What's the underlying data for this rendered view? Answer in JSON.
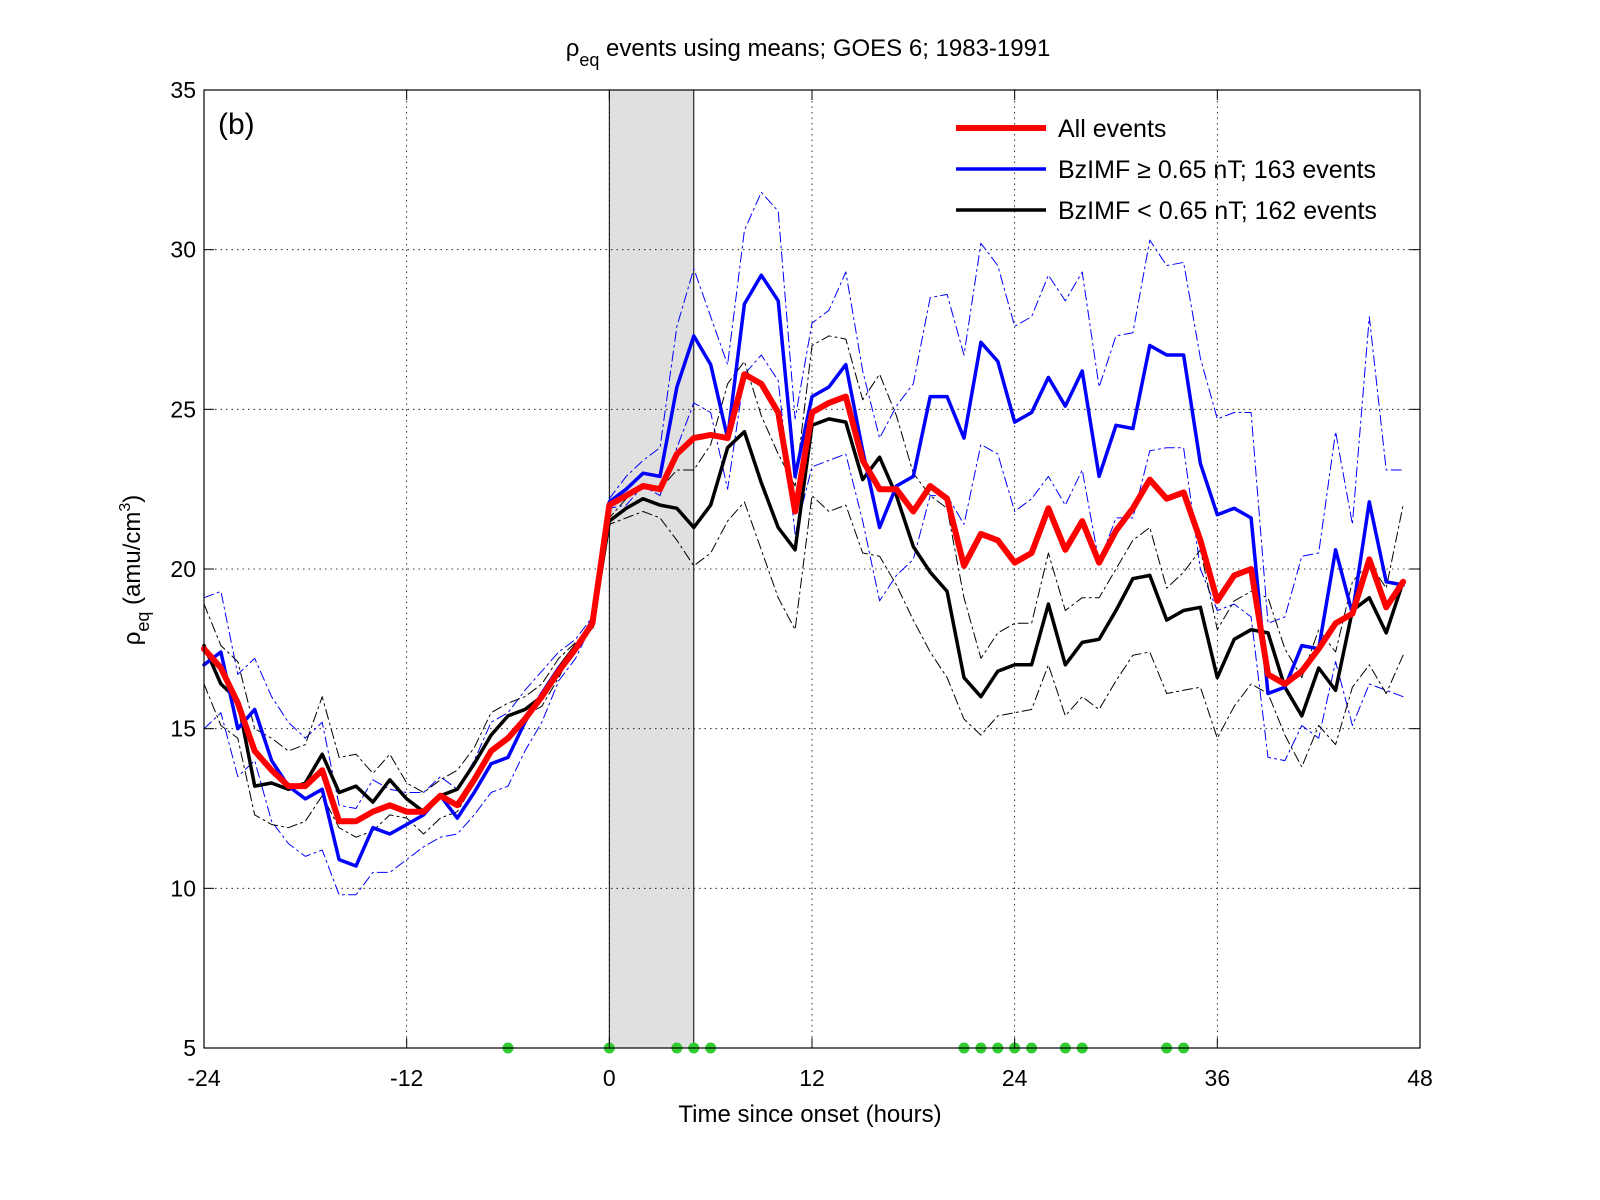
{
  "title": {
    "rho": "ρ",
    "sub": "eq",
    "rest": " events using means; GOES 6; 1983-1991"
  },
  "panel_label": "(b)",
  "chart_data": {
    "type": "line",
    "xlabel": "Time since onset (hours)",
    "ylabel": {
      "rho": "ρ",
      "sub": "eq",
      "units_pre": " (amu/cm",
      "units_sup": "3",
      "units_post": ")"
    },
    "xlim": [
      -24,
      48
    ],
    "ylim": [
      5,
      35
    ],
    "xticks": [
      -24,
      -12,
      0,
      12,
      24,
      36,
      48
    ],
    "yticks": [
      5,
      10,
      15,
      20,
      25,
      30,
      35
    ],
    "grid": true,
    "shaded_region": [
      0,
      5
    ],
    "legend_position": "top-right",
    "legend": [
      {
        "label": "All events",
        "color": "#ff0000",
        "width": 6
      },
      {
        "label": "BzIMF  ≥ 0.65 nT; 163 events",
        "color": "#0000ff",
        "width": 3.5
      },
      {
        "label": "BzIMF < 0.65 nT; 162 events",
        "color": "#000000",
        "width": 3.5
      }
    ],
    "x": [
      -24,
      -23,
      -22,
      -21,
      -20,
      -19,
      -18,
      -17,
      -16,
      -15,
      -14,
      -13,
      -12,
      -11,
      -10,
      -9,
      -8,
      -7,
      -6,
      -5,
      -4,
      -3,
      -2,
      -1,
      0,
      1,
      2,
      3,
      4,
      5,
      6,
      7,
      8,
      9,
      10,
      11,
      12,
      13,
      14,
      15,
      16,
      17,
      18,
      19,
      20,
      21,
      22,
      23,
      24,
      25,
      26,
      27,
      28,
      29,
      30,
      31,
      32,
      33,
      34,
      35,
      36,
      37,
      38,
      39,
      40,
      41,
      42,
      43,
      44,
      45,
      46,
      47
    ],
    "series": [
      {
        "name": "All events",
        "color": "#ff0000",
        "width": 6,
        "values": [
          17.5,
          16.9,
          15.8,
          14.3,
          13.7,
          13.2,
          13.2,
          13.7,
          12.1,
          12.1,
          12.4,
          12.6,
          12.4,
          12.4,
          12.9,
          12.6,
          13.4,
          14.3,
          14.7,
          15.3,
          16.0,
          16.8,
          17.5,
          18.3,
          22.0,
          22.3,
          22.6,
          22.5,
          23.6,
          24.1,
          24.2,
          24.1,
          26.1,
          25.8,
          24.9,
          21.8,
          24.9,
          25.2,
          25.4,
          23.4,
          22.5,
          22.5,
          21.8,
          22.6,
          22.2,
          20.1,
          21.1,
          20.9,
          20.2,
          20.5,
          21.9,
          20.6,
          21.5,
          20.2,
          21.2,
          21.9,
          22.8,
          22.2,
          22.4,
          20.9,
          19.0,
          19.8,
          20.0,
          16.7,
          16.4,
          16.8,
          17.5,
          18.3,
          18.6,
          20.3,
          18.8,
          19.6
        ]
      },
      {
        "name": "BzIMF  ≥ 0.65 nT; 163 events",
        "color": "#0000ff",
        "width": 3.5,
        "values": [
          17.0,
          17.4,
          15.0,
          15.6,
          14.0,
          13.2,
          12.8,
          13.1,
          10.9,
          10.7,
          11.9,
          11.7,
          12.0,
          12.3,
          12.9,
          12.2,
          13.0,
          13.9,
          14.1,
          15.2,
          16.1,
          16.9,
          17.5,
          18.4,
          22.1,
          22.5,
          23.0,
          22.9,
          25.7,
          27.3,
          26.4,
          24.1,
          28.3,
          29.2,
          28.4,
          22.9,
          25.4,
          25.7,
          26.4,
          23.7,
          21.3,
          22.6,
          22.9,
          25.4,
          25.4,
          24.1,
          27.1,
          26.5,
          24.6,
          24.9,
          26.0,
          25.1,
          26.2,
          22.9,
          24.5,
          24.4,
          27.0,
          26.7,
          26.7,
          23.3,
          21.7,
          21.9,
          21.6,
          16.1,
          16.3,
          17.6,
          17.5,
          20.6,
          18.6,
          22.1,
          19.6,
          19.5
        ]
      },
      {
        "name": "BzIMF < 0.65 nT; 162 events",
        "color": "#000000",
        "width": 3.5,
        "values": [
          17.6,
          16.4,
          15.9,
          13.2,
          13.3,
          13.1,
          13.3,
          14.2,
          13.0,
          13.2,
          12.7,
          13.4,
          12.8,
          12.4,
          12.9,
          13.1,
          13.9,
          14.8,
          15.4,
          15.6,
          16.0,
          16.9,
          17.6,
          18.2,
          21.5,
          21.9,
          22.2,
          22.0,
          21.9,
          21.3,
          22.0,
          23.8,
          24.3,
          22.7,
          21.3,
          20.6,
          24.5,
          24.7,
          24.6,
          22.8,
          23.5,
          22.3,
          20.7,
          19.9,
          19.3,
          16.6,
          16.0,
          16.8,
          17.0,
          17.0,
          18.9,
          17.0,
          17.7,
          17.8,
          18.7,
          19.7,
          19.8,
          18.4,
          18.7,
          18.8,
          16.6,
          17.8,
          18.1,
          18.0,
          16.3,
          15.4,
          16.9,
          16.2,
          18.7,
          19.1,
          18.0,
          19.6
        ]
      },
      {
        "name": "",
        "color": "#0000ff",
        "width": 1,
        "dashed": true,
        "values": [
          19.1,
          19.3,
          16.7,
          17.2,
          16.0,
          15.2,
          14.7,
          15.2,
          12.6,
          12.5,
          13.4,
          13.1,
          13.0,
          13.0,
          13.5,
          13.1,
          14.0,
          15.2,
          15.5,
          16.2,
          16.8,
          17.4,
          17.8,
          18.5,
          22.2,
          22.9,
          23.4,
          23.8,
          27.6,
          29.4,
          27.9,
          26.4,
          30.6,
          31.8,
          31.2,
          24.7,
          27.7,
          28.1,
          29.3,
          26.2,
          24.1,
          25.1,
          25.8,
          28.5,
          28.6,
          26.7,
          30.2,
          29.5,
          27.6,
          27.9,
          29.2,
          28.4,
          29.3,
          25.7,
          27.3,
          27.4,
          30.3,
          29.5,
          29.6,
          26.6,
          24.7,
          24.9,
          24.9,
          18.3,
          18.5,
          20.4,
          20.5,
          24.3,
          21.4,
          27.9,
          23.1,
          23.1
        ]
      },
      {
        "name": "",
        "color": "#0000ff",
        "width": 1,
        "dashed": true,
        "values": [
          15.0,
          15.5,
          13.5,
          14.0,
          12.1,
          11.4,
          11.0,
          11.2,
          9.8,
          9.8,
          10.5,
          10.5,
          10.9,
          11.3,
          11.6,
          11.7,
          12.3,
          13.0,
          13.2,
          14.3,
          15.2,
          16.5,
          17.2,
          18.3,
          21.9,
          22.0,
          22.6,
          22.3,
          23.8,
          25.2,
          24.9,
          22.5,
          26.1,
          26.7,
          25.9,
          21.1,
          23.2,
          23.4,
          23.6,
          21.5,
          19.0,
          19.8,
          20.3,
          22.3,
          22.3,
          21.4,
          23.9,
          23.6,
          21.8,
          22.2,
          22.9,
          22.0,
          23.1,
          20.2,
          21.6,
          21.6,
          23.7,
          23.8,
          23.8,
          20.0,
          18.7,
          18.9,
          18.5,
          14.1,
          14.0,
          15.1,
          14.7,
          17.1,
          15.1,
          16.4,
          16.2,
          16.0
        ]
      },
      {
        "name": "",
        "color": "#000000",
        "width": 1,
        "dashed": true,
        "values": [
          18.9,
          17.6,
          17.1,
          15.0,
          14.7,
          14.3,
          14.5,
          16.0,
          14.1,
          14.2,
          13.6,
          14.2,
          13.3,
          13.0,
          13.4,
          13.7,
          14.4,
          15.5,
          15.8,
          16.0,
          16.4,
          17.2,
          17.7,
          18.2,
          21.6,
          22.2,
          22.6,
          22.5,
          23.1,
          23.1,
          23.9,
          25.8,
          26.5,
          24.8,
          23.6,
          22.6,
          27.0,
          27.3,
          27.2,
          25.3,
          26.1,
          24.8,
          23.0,
          22.3,
          21.9,
          19.1,
          17.2,
          18.0,
          18.3,
          18.3,
          20.5,
          18.7,
          19.1,
          19.1,
          20.0,
          20.9,
          21.3,
          19.4,
          19.9,
          20.6,
          18.1,
          19.0,
          19.3,
          19.1,
          17.5,
          16.6,
          18.1,
          17.4,
          19.6,
          20.2,
          19.4,
          22.0
        ]
      },
      {
        "name": "",
        "color": "#000000",
        "width": 1,
        "dashed": true,
        "values": [
          16.4,
          15.1,
          14.7,
          12.3,
          12.0,
          11.9,
          12.1,
          12.9,
          11.9,
          11.6,
          11.8,
          12.3,
          12.2,
          11.7,
          12.2,
          12.4,
          13.3,
          14.3,
          14.8,
          15.4,
          15.7,
          16.6,
          17.6,
          18.2,
          21.4,
          21.6,
          21.8,
          21.6,
          20.9,
          20.1,
          20.5,
          21.5,
          22.1,
          20.6,
          19.1,
          18.1,
          22.3,
          21.8,
          22.0,
          20.5,
          20.4,
          19.5,
          18.4,
          17.4,
          16.6,
          15.3,
          14.8,
          15.4,
          15.5,
          15.6,
          17.0,
          15.4,
          16.0,
          15.6,
          16.5,
          17.3,
          17.4,
          16.1,
          16.2,
          16.3,
          14.7,
          15.7,
          16.4,
          16.1,
          14.8,
          13.8,
          15.1,
          14.5,
          16.3,
          17.0,
          16.1,
          17.3
        ]
      }
    ],
    "markers": {
      "color": "#33cc33",
      "y": 5,
      "x": [
        -6,
        0,
        4,
        5,
        6,
        21,
        22,
        23,
        24,
        25,
        27,
        28,
        33,
        34
      ]
    }
  }
}
